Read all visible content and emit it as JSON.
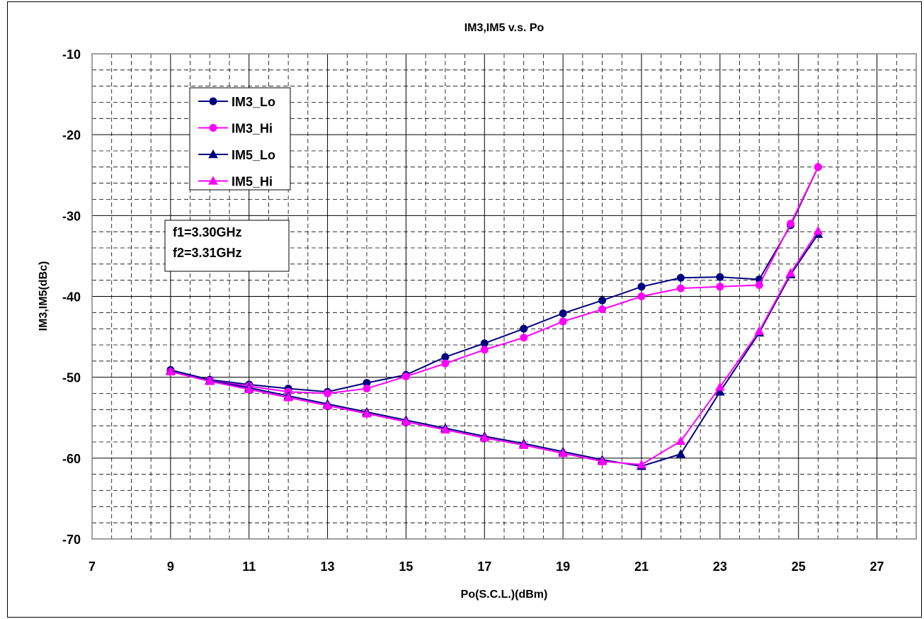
{
  "chart_data": {
    "type": "line",
    "title": "IM3,IM5  v.s.  Po",
    "xlabel": "Po(S.C.L.)(dBm)",
    "ylabel": "IM3,IM5(dBc)",
    "xlim": [
      7,
      28
    ],
    "ylim": [
      -70,
      -10
    ],
    "xticks": [
      7,
      9,
      11,
      13,
      15,
      17,
      19,
      21,
      23,
      25,
      27
    ],
    "yticks": [
      -10,
      -20,
      -30,
      -40,
      -50,
      -60,
      -70
    ],
    "grid": true,
    "legend_position": "top-left",
    "annotation": [
      "f1=3.30GHz",
      "f2=3.31GHz"
    ],
    "series": [
      {
        "name": "IM3_Lo",
        "color": "#000080",
        "marker": "circle",
        "x": [
          9,
          10,
          11,
          12,
          13,
          14,
          15,
          16,
          17,
          18,
          19,
          20,
          21,
          22,
          23,
          24,
          24.8,
          25.5
        ],
        "y": [
          -49.1,
          -50.3,
          -50.9,
          -51.4,
          -51.8,
          -50.7,
          -49.7,
          -47.5,
          -45.8,
          -44.0,
          -42.1,
          -40.5,
          -38.8,
          -37.7,
          -37.6,
          -37.9,
          -31.2,
          -24.0
        ]
      },
      {
        "name": "IM3_Hi",
        "color": "#FF00FF",
        "marker": "circle",
        "x": [
          9,
          10,
          11,
          12,
          13,
          14,
          15,
          16,
          17,
          18,
          19,
          20,
          21,
          22,
          23,
          24,
          24.8,
          25.5
        ],
        "y": [
          -49.3,
          -50.4,
          -51.1,
          -51.8,
          -52.0,
          -51.4,
          -49.9,
          -48.3,
          -46.6,
          -45.1,
          -43.1,
          -41.6,
          -40.0,
          -39.0,
          -38.8,
          -38.6,
          -31.0,
          -24.0
        ]
      },
      {
        "name": "IM5_Lo",
        "color": "#000080",
        "marker": "triangle",
        "x": [
          9,
          10,
          11,
          12,
          13,
          14,
          15,
          16,
          17,
          18,
          19,
          20,
          21,
          22,
          23,
          24,
          24.8,
          25.5
        ],
        "y": [
          -49.2,
          -50.4,
          -51.3,
          -52.3,
          -53.3,
          -54.3,
          -55.3,
          -56.3,
          -57.3,
          -58.2,
          -59.2,
          -60.2,
          -61.0,
          -59.5,
          -51.8,
          -44.5,
          -37.3,
          -32.3
        ]
      },
      {
        "name": "IM5_Hi",
        "color": "#FF00FF",
        "marker": "triangle",
        "x": [
          9,
          10,
          11,
          12,
          13,
          14,
          15,
          16,
          17,
          18,
          19,
          20,
          21,
          22,
          23,
          24,
          24.8,
          25.5
        ],
        "y": [
          -49.3,
          -50.5,
          -51.5,
          -52.5,
          -53.5,
          -54.5,
          -55.5,
          -56.5,
          -57.5,
          -58.4,
          -59.4,
          -60.4,
          -60.8,
          -57.9,
          -51.2,
          -44.3,
          -37.1,
          -31.9
        ]
      }
    ]
  }
}
